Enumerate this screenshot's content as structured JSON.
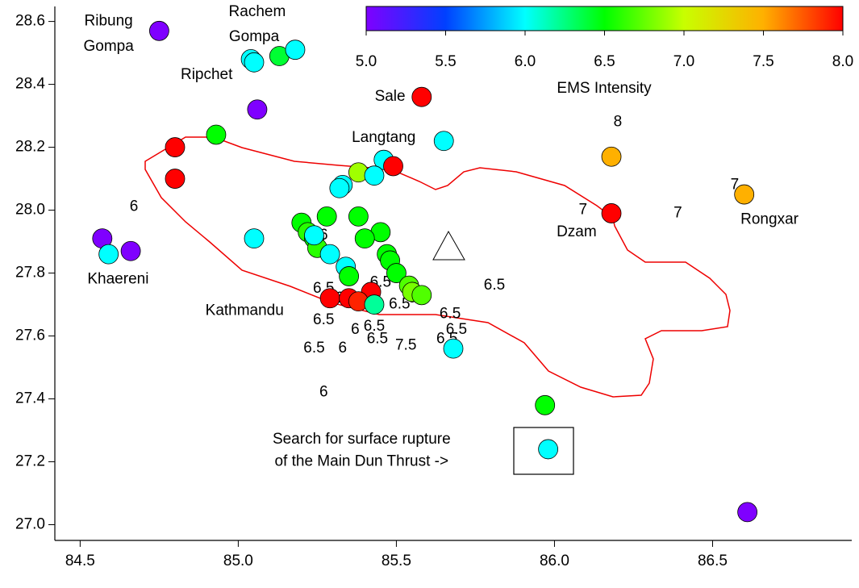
{
  "chart_data": {
    "type": "scatter",
    "xlim": [
      84.42,
      86.94
    ],
    "ylim": [
      26.95,
      28.64
    ],
    "xticks": [
      84.5,
      {
        "value": 85,
        "label": "85.0"
      },
      85.5,
      {
        "value": 86,
        "label": "86.0"
      },
      86.5
    ],
    "yticks": [
      {
        "value": 27,
        "label": "27.0"
      },
      27.2,
      27.4,
      27.6,
      27.8,
      {
        "value": 28,
        "label": "28.0"
      },
      28.2,
      28.4,
      28.6
    ],
    "colorbar": {
      "label": "EMS Intensity",
      "lim": [
        5,
        8
      ],
      "ticks": [
        {
          "value": 5,
          "label": "5.0"
        },
        5.5,
        {
          "value": 6,
          "label": "6.0"
        },
        6.5,
        {
          "value": 7,
          "label": "7.0"
        },
        7.5,
        {
          "value": 8,
          "label": "8.0"
        }
      ],
      "colormap": [
        "#7f00ff",
        "#0040ff",
        "#00ffff",
        "#00ff00",
        "#c8ff00",
        "#ffb000",
        "#ff0000"
      ]
    },
    "series": [
      {
        "x": [
          84.75,
          85.04,
          85.05,
          85.13,
          85.18,
          85.06,
          84.93,
          84.8,
          84.8,
          84.57,
          84.66,
          84.59,
          85.58,
          85.65,
          85.46,
          85.49,
          85.38,
          85.43,
          85.33,
          85.32,
          85.05,
          85.2,
          85.28,
          85.38,
          85.45,
          85.4,
          85.22,
          85.24,
          85.25,
          85.24,
          85.29,
          85.34,
          85.35,
          85.47,
          85.48,
          85.5,
          85.54,
          85.55,
          85.58,
          85.29,
          85.35,
          85.42,
          85.38,
          85.43,
          85.68,
          85.97,
          85.98,
          86.18,
          86.18,
          86.6,
          86.61
        ],
        "values": [
          28.57,
          28.48,
          28.47,
          28.49,
          28.51,
          28.32,
          28.24,
          28.2,
          28.1,
          27.91,
          27.87,
          27.86,
          28.36,
          28.22,
          28.16,
          28.14,
          28.12,
          28.11,
          28.08,
          28.07,
          27.91,
          27.96,
          27.98,
          27.98,
          27.93,
          27.91,
          27.93,
          27.91,
          27.88,
          27.92,
          27.86,
          27.82,
          27.79,
          27.86,
          27.84,
          27.8,
          27.76,
          27.74,
          27.73,
          27.72,
          27.72,
          27.74,
          27.71,
          27.7,
          27.56,
          27.38,
          27.24,
          28.17,
          27.99,
          28.05,
          27.04
        ],
        "intensity": [
          5,
          6,
          6,
          6.4,
          6,
          5,
          6.5,
          8,
          8,
          5,
          5,
          6,
          8,
          6,
          6,
          8,
          6.9,
          6,
          6,
          6,
          6,
          6.5,
          6.5,
          6.5,
          6.5,
          6.5,
          6.6,
          6.5,
          6.6,
          6,
          6,
          6,
          6.5,
          6.5,
          6.5,
          6.5,
          6.7,
          6.8,
          6.7,
          8,
          8,
          8,
          7.9,
          6.2,
          6,
          6.5,
          6,
          7.5,
          8,
          7.5,
          5
        ]
      }
    ],
    "place_labels": [
      {
        "text": "Ribung",
        "x": 84.59,
        "y": 28.6
      },
      {
        "text": "Gompa",
        "x": 84.59,
        "y": 28.52
      },
      {
        "text": "Rachem",
        "x": 85.06,
        "y": 28.63
      },
      {
        "text": "Gompa",
        "x": 85.05,
        "y": 28.55
      },
      {
        "text": "Ripchet",
        "x": 84.9,
        "y": 28.43
      },
      {
        "text": "Sale",
        "x": 85.48,
        "y": 28.36
      },
      {
        "text": "Langtang",
        "x": 85.46,
        "y": 28.23
      },
      {
        "text": "Kathmandu",
        "x": 85.02,
        "y": 27.68
      },
      {
        "text": "Dzam",
        "x": 86.07,
        "y": 27.93
      },
      {
        "text": "Rongxar",
        "x": 86.68,
        "y": 27.97
      },
      {
        "text": "Khaereni",
        "x": 84.62,
        "y": 27.78
      },
      {
        "text": "Search for surface rupture",
        "x": 85.39,
        "y": 27.27
      },
      {
        "text": "of the Main Dun Thrust  ->",
        "x": 85.39,
        "y": 27.2
      }
    ],
    "intensity_labels": [
      {
        "text": "8",
        "x": 86.2,
        "y": 28.28
      },
      {
        "text": "7",
        "x": 86.57,
        "y": 28.08
      },
      {
        "text": "7",
        "x": 86.09,
        "y": 28.0
      },
      {
        "text": "7",
        "x": 86.19,
        "y": 27.99
      },
      {
        "text": "7",
        "x": 86.39,
        "y": 27.99
      },
      {
        "text": "6",
        "x": 84.67,
        "y": 28.01
      },
      {
        "text": "6",
        "x": 85.27,
        "y": 27.92
      },
      {
        "text": "6.5",
        "x": 85.81,
        "y": 27.76
      },
      {
        "text": "6",
        "x": 85.27,
        "y": 27.42
      },
      {
        "text": "6.5",
        "x": 85.24,
        "y": 27.56
      },
      {
        "text": "6",
        "x": 85.33,
        "y": 27.56
      },
      {
        "text": "6.5",
        "x": 85.27,
        "y": 27.75
      },
      {
        "text": "6.5",
        "x": 85.27,
        "y": 27.65
      },
      {
        "text": "6.5",
        "x": 85.45,
        "y": 27.77
      },
      {
        "text": "6.5",
        "x": 85.51,
        "y": 27.7
      },
      {
        "text": "6.5",
        "x": 85.57,
        "y": 27.72
      },
      {
        "text": "6.5",
        "x": 85.67,
        "y": 27.67
      },
      {
        "text": "6.5",
        "x": 85.69,
        "y": 27.62
      },
      {
        "text": "6.5",
        "x": 85.66,
        "y": 27.59
      },
      {
        "text": "7.5",
        "x": 85.53,
        "y": 27.57
      },
      {
        "text": "6",
        "x": 85.37,
        "y": 27.62
      },
      {
        "text": "6.5",
        "x": 85.44,
        "y": 27.59
      },
      {
        "text": "6.5",
        "x": 85.43,
        "y": 27.63
      },
      {
        "text": "6",
        "x": 85.32,
        "y": 27.72
      }
    ]
  }
}
